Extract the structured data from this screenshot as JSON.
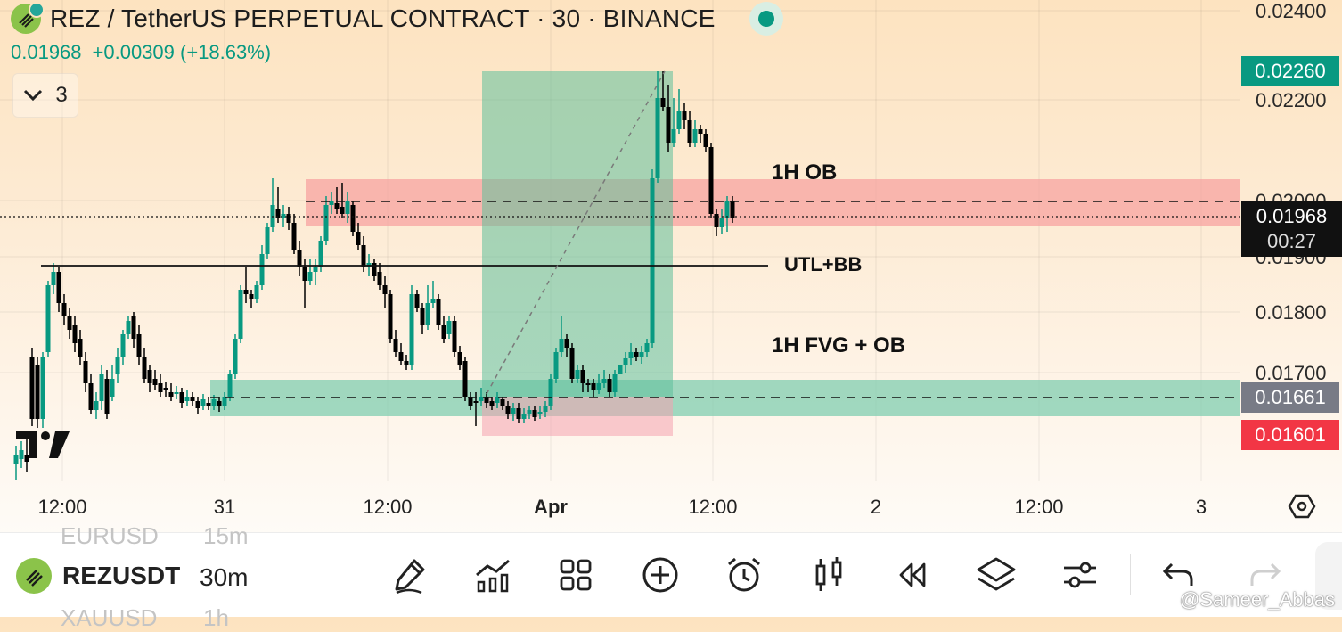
{
  "header": {
    "title": "REZ / TetherUS PERPETUAL CONTRACT · 30 · BINANCE",
    "last_price": "0.01968",
    "change": "+0.00309 (+18.63%)",
    "indicators_count": "3"
  },
  "price_axis": {
    "ticks": [
      "0.02400",
      "0.02200",
      "0.02000",
      "0.01900",
      "0.01800",
      "0.01700"
    ],
    "tags": {
      "high_level": "0.02260",
      "current_price": "0.01968",
      "countdown": "00:27",
      "entry_level": "0.01661",
      "stop_level": "0.01601"
    }
  },
  "time_axis": {
    "labels": [
      "12:00",
      "31",
      "12:00",
      "Apr",
      "12:00",
      "2",
      "12:00",
      "3"
    ]
  },
  "annotations": {
    "ob": "1H OB",
    "utl": "UTL+BB",
    "fvg": "1H FVG + OB"
  },
  "colors": {
    "up": "#089981",
    "down": "#000000",
    "ob_zone": "#f7a3a0",
    "fvg_zone": "#80cdb0",
    "stop_tag": "#f23645",
    "high_tag": "#089981",
    "entry_tag": "#787b86"
  },
  "bottom_bar": {
    "symbol": "REZUSDT",
    "timeframe": "30m",
    "ghost_above": {
      "symbol": "EURUSD",
      "timeframe": "15m"
    },
    "ghost_below": {
      "symbol": "XAUUSD",
      "timeframe": "1h"
    },
    "tools": [
      "pencil-icon",
      "indicators-icon",
      "grid-icon",
      "add-icon",
      "alarm-icon",
      "candles-icon",
      "replay-icon",
      "layers-icon",
      "settings-sliders-icon",
      "undo-icon",
      "redo-icon"
    ],
    "watermark": "@Sameer_Abbas"
  }
}
